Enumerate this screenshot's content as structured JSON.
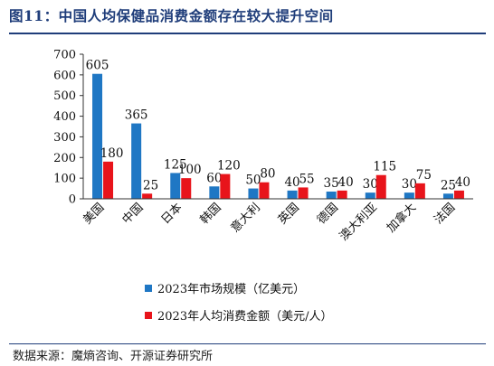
{
  "title": "图11：中国人均保健品消费金额存在较大提升空间",
  "source": "数据来源：魔熵咨询、开源证券研究所",
  "colors": {
    "series1": "#1f77c4",
    "series2": "#e8141b",
    "title": "#1f3d7a"
  },
  "chart_data": {
    "type": "bar",
    "categories": [
      "美国",
      "中国",
      "日本",
      "韩国",
      "意大利",
      "英国",
      "德国",
      "澳大利亚",
      "加拿大",
      "法国"
    ],
    "series": [
      {
        "name": "2023年市场规模（亿美元）",
        "values": [
          605,
          365,
          125,
          60,
          50,
          40,
          35,
          30,
          30,
          25
        ]
      },
      {
        "name": "2023年人均消费金额（美元/人）",
        "values": [
          180,
          25,
          100,
          120,
          80,
          55,
          40,
          115,
          75,
          40
        ]
      }
    ],
    "ylim": [
      0,
      700
    ],
    "yticks": [
      0,
      100,
      200,
      300,
      400,
      500,
      600,
      700
    ],
    "legend_position": "bottom",
    "grid": false
  }
}
